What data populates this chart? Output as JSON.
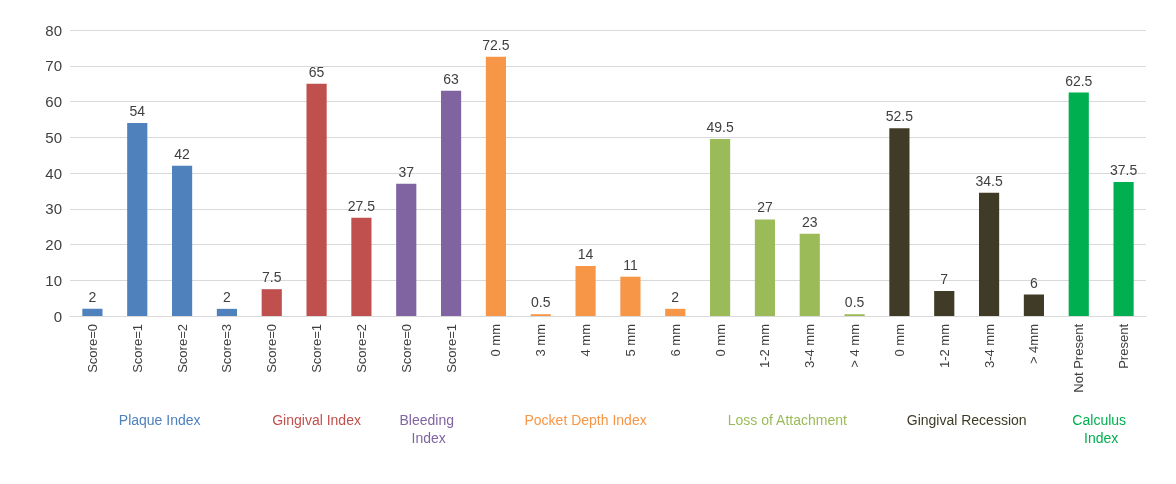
{
  "chart_data": {
    "type": "bar",
    "categories": [
      "Score=0",
      "Score=1",
      "Score=2",
      "Score=3",
      "Score=0",
      "Score=1",
      "Score=2",
      "Score=0",
      "Score=1",
      "0 mm",
      "3 mm",
      "4 mm",
      "5 mm",
      "6 mm",
      "0 mm",
      "1-2 mm",
      "3-4 mm",
      "> 4 mm",
      "0 mm",
      "1-2 mm",
      "3-4 mm",
      "> 4mm",
      "Not Present",
      "Present"
    ],
    "series": [
      {
        "name": "Plaque Index",
        "color": "#4f81bd",
        "values": [
          2,
          54,
          42,
          2,
          null,
          null,
          null,
          null,
          null,
          null,
          null,
          null,
          null,
          null,
          null,
          null,
          null,
          null,
          null,
          null,
          null,
          null,
          null,
          null
        ]
      },
      {
        "name": "Gingival Index",
        "color": "#c0504d",
        "values": [
          null,
          null,
          null,
          null,
          7.5,
          65,
          27.5,
          null,
          null,
          null,
          null,
          null,
          null,
          null,
          null,
          null,
          null,
          null,
          null,
          null,
          null,
          null,
          null,
          null
        ]
      },
      {
        "name": "Bleeding Index",
        "color": "#8064a2",
        "values": [
          null,
          null,
          null,
          null,
          null,
          null,
          null,
          37,
          63,
          null,
          null,
          null,
          null,
          null,
          null,
          null,
          null,
          null,
          null,
          null,
          null,
          null,
          null,
          null
        ]
      },
      {
        "name": "Pocket Depth Index",
        "color": "#f79646",
        "values": [
          null,
          null,
          null,
          null,
          null,
          null,
          null,
          null,
          null,
          72.5,
          0.5,
          14,
          11,
          2,
          null,
          null,
          null,
          null,
          null,
          null,
          null,
          null,
          null,
          null
        ]
      },
      {
        "name": "Loss of Attachment",
        "color": "#9bbb59",
        "values": [
          null,
          null,
          null,
          null,
          null,
          null,
          null,
          null,
          null,
          null,
          null,
          null,
          null,
          null,
          49.5,
          27,
          23,
          0.5,
          null,
          null,
          null,
          null,
          null,
          null
        ]
      },
      {
        "name": "Gingival Recession",
        "color": "#3f3b26",
        "values": [
          null,
          null,
          null,
          null,
          null,
          null,
          null,
          null,
          null,
          null,
          null,
          null,
          null,
          null,
          null,
          null,
          null,
          null,
          52.5,
          7,
          34.5,
          6,
          null,
          null
        ]
      },
      {
        "name": "Calculus Index",
        "color": "#00b050",
        "values": [
          null,
          null,
          null,
          null,
          null,
          null,
          null,
          null,
          null,
          null,
          null,
          null,
          null,
          null,
          null,
          null,
          null,
          null,
          null,
          null,
          null,
          null,
          62.5,
          37.5
        ]
      }
    ],
    "ylim": [
      0,
      80
    ],
    "yticks": [
      0,
      10,
      20,
      30,
      40,
      50,
      60,
      70,
      80
    ],
    "grid": "y",
    "data_labels": true,
    "legend": false
  }
}
